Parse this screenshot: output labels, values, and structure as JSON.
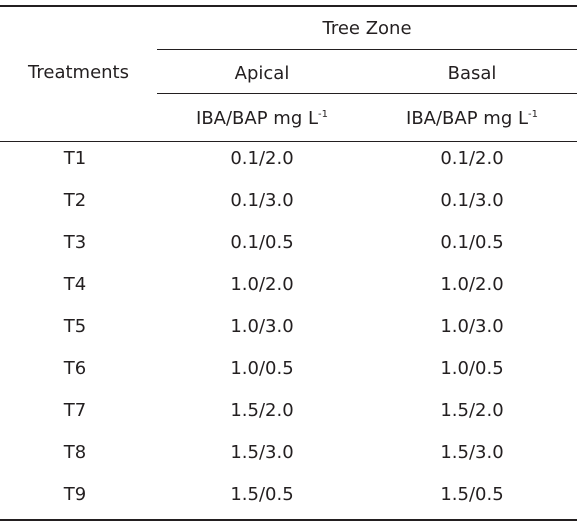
{
  "header": {
    "treatments": "Treatments",
    "tree_zone": "Tree Zone",
    "apical": "Apical",
    "basal": "Basal",
    "unit_main": "IBA/BAP mg L",
    "unit_exp": "-1"
  },
  "rows": [
    {
      "treatment": "T1",
      "apical": "0.1/2.0",
      "basal": "0.1/2.0"
    },
    {
      "treatment": "T2",
      "apical": "0.1/3.0",
      "basal": "0.1/3.0"
    },
    {
      "treatment": "T3",
      "apical": "0.1/0.5",
      "basal": "0.1/0.5"
    },
    {
      "treatment": "T4",
      "apical": "1.0/2.0",
      "basal": "1.0/2.0"
    },
    {
      "treatment": "T5",
      "apical": "1.0/3.0",
      "basal": "1.0/3.0"
    },
    {
      "treatment": "T6",
      "apical": "1.0/0.5",
      "basal": "1.0/0.5"
    },
    {
      "treatment": "T7",
      "apical": "1.5/2.0",
      "basal": "1.5/2.0"
    },
    {
      "treatment": "T8",
      "apical": "1.5/3.0",
      "basal": "1.5/3.0"
    },
    {
      "treatment": "T9",
      "apical": "1.5/0.5",
      "basal": "1.5/0.5"
    }
  ]
}
